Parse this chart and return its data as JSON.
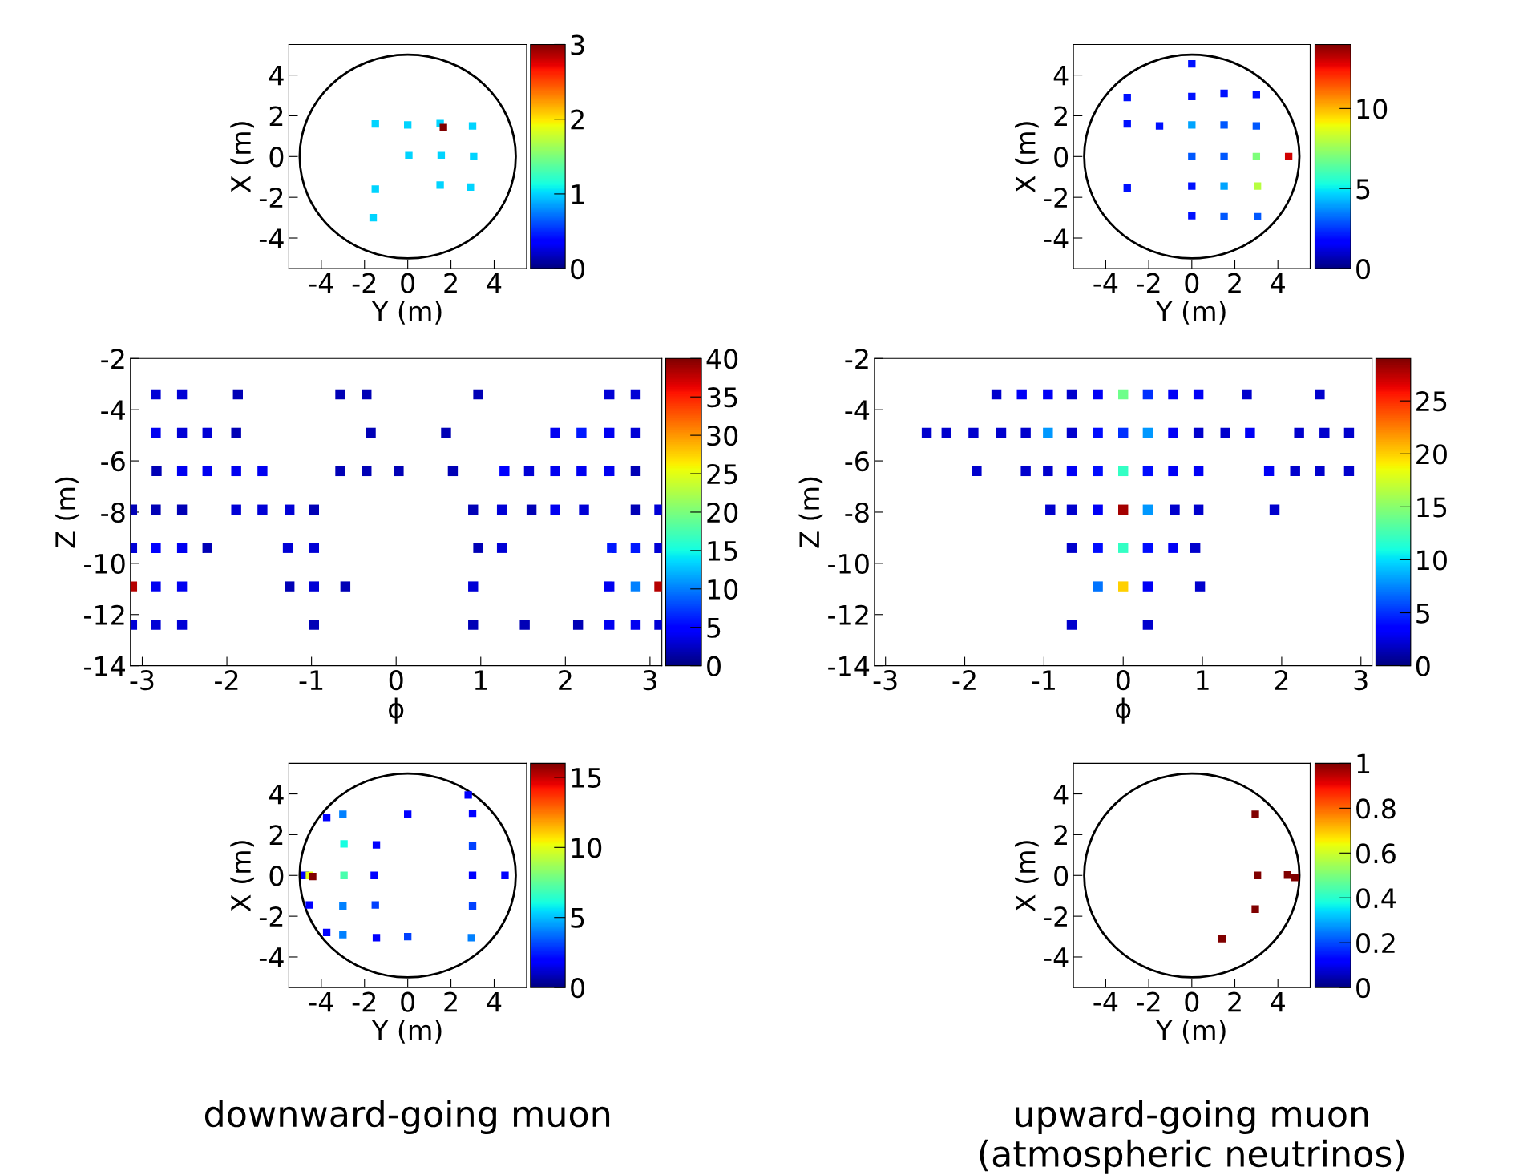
{
  "chart_data": [
    {
      "type": "scatter",
      "xlabel": "Y (m)",
      "ylabel": "X (m)",
      "marker": "square",
      "xlim": [
        -5.5,
        5.5
      ],
      "ylim": [
        -5.5,
        5.5
      ],
      "xticks": [
        -4,
        -2,
        0,
        2,
        4
      ],
      "yticks": [
        -4,
        -2,
        0,
        2,
        4
      ],
      "clim": [
        0,
        3
      ],
      "cticks": [
        0,
        1,
        2,
        3
      ],
      "x": [
        -1.5,
        0,
        1.5,
        1.65,
        3.0,
        0.05,
        1.55,
        3.05,
        -1.5,
        1.5,
        2.9,
        -1.6
      ],
      "values": [
        1.6,
        1.55,
        1.62,
        1.42,
        1.5,
        0.05,
        0.05,
        0,
        -1.6,
        -1.4,
        -1.5,
        -3.0
      ],
      "cvalues": [
        1,
        1,
        1,
        3,
        1,
        1,
        1,
        1,
        1,
        1,
        1,
        1
      ]
    },
    {
      "type": "scatter",
      "xlabel": "Y (m)",
      "ylabel": "X (m)",
      "marker": "square",
      "xlim": [
        -5.5,
        5.5
      ],
      "ylim": [
        -5.5,
        5.5
      ],
      "xticks": [
        -4,
        -2,
        0,
        2,
        4
      ],
      "yticks": [
        -4,
        -2,
        0,
        2,
        4
      ],
      "clim": [
        0,
        14
      ],
      "cticks": [
        0,
        5,
        10
      ],
      "x": [
        0,
        -3.0,
        0,
        1.5,
        3.0,
        -3.0,
        -1.5,
        0,
        1.5,
        3.0,
        0,
        1.5,
        3.0,
        4.5,
        -3.0,
        0,
        1.5,
        3.05,
        0,
        1.5,
        3.05
      ],
      "values": [
        4.55,
        2.9,
        2.95,
        3.1,
        3.05,
        1.6,
        1.5,
        1.55,
        1.55,
        1.5,
        0,
        0,
        0,
        0,
        -1.55,
        -1.45,
        -1.45,
        -1.45,
        -2.9,
        -2.95,
        -2.95
      ],
      "cvalues": [
        2,
        2,
        2,
        2,
        2,
        2,
        2,
        4,
        3,
        3,
        3,
        3,
        7,
        13,
        2,
        2,
        4,
        8,
        2,
        3,
        3
      ]
    },
    {
      "type": "scatter",
      "xlabel": "ϕ",
      "ylabel": "Z (m)",
      "marker": "square",
      "xlim": [
        -3.14,
        3.14
      ],
      "ylim": [
        -14,
        -2
      ],
      "xticks": [
        -3,
        -2,
        -1,
        0,
        1,
        2,
        3
      ],
      "yticks": [
        -14,
        -12,
        -10,
        -8,
        -6,
        -4,
        -2
      ],
      "clim": [
        0,
        40
      ],
      "cticks": [
        0,
        5,
        10,
        15,
        20,
        25,
        30,
        35,
        40
      ],
      "x": [
        -2.84,
        -2.53,
        -1.87,
        -0.66,
        -0.35,
        0.97,
        2.52,
        2.83,
        -2.84,
        -2.53,
        -2.23,
        -1.89,
        -0.3,
        0.59,
        1.88,
        2.19,
        2.52,
        2.83,
        -2.83,
        -2.53,
        -2.23,
        -1.89,
        -1.58,
        -0.66,
        -0.35,
        0.03,
        0.67,
        1.28,
        1.57,
        1.88,
        2.19,
        2.52,
        2.83,
        -3.12,
        -2.84,
        -2.53,
        -1.89,
        -1.58,
        -1.26,
        -0.97,
        0.91,
        1.25,
        1.6,
        1.88,
        2.22,
        2.83,
        3.11,
        -3.12,
        -2.84,
        -2.53,
        -2.23,
        -1.28,
        -0.97,
        0.97,
        1.25,
        2.55,
        2.83,
        3.11,
        -3.12,
        -2.84,
        -2.53,
        -1.26,
        -0.97,
        -0.6,
        0.91,
        2.52,
        2.83,
        3.11,
        -3.12,
        -2.84,
        -2.53,
        -0.97,
        0.91,
        1.52,
        2.15,
        2.52,
        2.83,
        3.11
      ],
      "values": [
        -3.4,
        -3.4,
        -3.4,
        -3.4,
        -3.4,
        -3.4,
        -3.4,
        -3.4,
        -4.9,
        -4.9,
        -4.9,
        -4.9,
        -4.9,
        -4.9,
        -4.9,
        -4.9,
        -4.9,
        -4.9,
        -6.4,
        -6.4,
        -6.4,
        -6.4,
        -6.4,
        -6.4,
        -6.4,
        -6.4,
        -6.4,
        -6.4,
        -6.4,
        -6.4,
        -6.4,
        -6.4,
        -6.4,
        -7.9,
        -7.9,
        -7.9,
        -7.9,
        -7.9,
        -7.9,
        -7.9,
        -7.9,
        -7.9,
        -7.9,
        -7.9,
        -7.9,
        -7.9,
        -7.9,
        -9.4,
        -9.4,
        -9.4,
        -9.4,
        -9.4,
        -9.4,
        -9.4,
        -9.4,
        -9.4,
        -9.4,
        -9.4,
        -10.9,
        -10.9,
        -10.9,
        -10.9,
        -10.9,
        -10.9,
        -10.9,
        -10.9,
        -10.9,
        -10.9,
        -12.4,
        -12.4,
        -12.4,
        -12.4,
        -12.4,
        -12.4,
        -12.4,
        -12.4,
        -12.4,
        -12.4
      ],
      "cvalues": [
        3,
        3,
        2,
        2,
        2,
        2,
        3,
        3,
        4,
        3,
        3,
        2,
        2,
        2,
        4,
        6,
        4,
        3,
        2,
        4,
        4,
        4,
        4,
        2,
        2,
        2,
        2,
        5,
        3,
        4,
        4,
        4,
        2,
        2,
        2,
        2,
        3,
        3,
        3,
        2,
        2,
        3,
        2,
        4,
        3,
        2,
        3,
        3,
        5,
        4,
        2,
        3,
        3,
        2,
        3,
        6,
        6,
        3,
        38,
        4,
        4,
        2,
        3,
        2,
        3,
        4,
        10,
        38,
        3,
        3,
        3,
        2,
        2,
        2,
        2,
        4,
        4,
        3
      ]
    },
    {
      "type": "scatter",
      "xlabel": "ϕ",
      "ylabel": "Z (m)",
      "marker": "square",
      "xlim": [
        -3.14,
        3.14
      ],
      "ylim": [
        -14,
        -2
      ],
      "xticks": [
        -3,
        -2,
        -1,
        0,
        1,
        2,
        3
      ],
      "yticks": [
        -14,
        -12,
        -10,
        -8,
        -6,
        -4,
        -2
      ],
      "clim": [
        0,
        29
      ],
      "cticks": [
        0,
        5,
        10,
        15,
        20,
        25
      ],
      "x": [
        -1.6,
        -1.28,
        -0.95,
        -0.65,
        -0.32,
        0,
        0.31,
        0.63,
        0.95,
        1.56,
        2.48,
        -2.48,
        -2.23,
        -1.89,
        -1.54,
        -1.23,
        -0.95,
        -0.65,
        -0.32,
        0,
        0.31,
        0.63,
        0.95,
        1.29,
        1.6,
        2.22,
        2.54,
        2.85,
        -1.85,
        -1.23,
        -0.95,
        -0.65,
        -0.32,
        0,
        0.31,
        0.63,
        0.95,
        1.84,
        2.17,
        2.48,
        2.85,
        -0.92,
        -0.65,
        -0.32,
        0,
        0.31,
        0.65,
        0.95,
        1.91,
        -0.65,
        -0.32,
        0,
        0.31,
        0.63,
        0.91,
        -0.32,
        0,
        0.31,
        0.97,
        -0.65,
        0.31
      ],
      "values": [
        -3.4,
        -3.4,
        -3.4,
        -3.4,
        -3.4,
        -3.4,
        -3.4,
        -3.4,
        -3.4,
        -3.4,
        -3.4,
        -4.9,
        -4.9,
        -4.9,
        -4.9,
        -4.9,
        -4.9,
        -4.9,
        -4.9,
        -4.9,
        -4.9,
        -4.9,
        -4.9,
        -4.9,
        -4.9,
        -4.9,
        -4.9,
        -4.9,
        -6.4,
        -6.4,
        -6.4,
        -6.4,
        -6.4,
        -6.4,
        -6.4,
        -6.4,
        -6.4,
        -6.4,
        -6.4,
        -6.4,
        -6.4,
        -7.9,
        -7.9,
        -7.9,
        -7.9,
        -7.9,
        -7.9,
        -7.9,
        -7.9,
        -9.4,
        -9.4,
        -9.4,
        -9.4,
        -9.4,
        -9.4,
        -10.9,
        -10.9,
        -10.9,
        -10.9,
        -12.4,
        -12.4
      ],
      "cvalues": [
        2,
        3,
        3,
        2,
        3,
        14,
        5,
        3,
        3,
        2,
        2,
        2,
        2,
        2,
        2,
        2,
        8,
        2,
        4,
        5,
        8,
        3,
        2,
        2,
        3,
        2,
        2,
        2,
        2,
        2,
        2,
        3,
        4,
        12,
        4,
        3,
        3,
        3,
        2,
        2,
        2,
        2,
        2,
        3,
        28,
        8,
        2,
        2,
        2,
        2,
        4,
        12,
        4,
        3,
        2,
        7,
        20,
        3,
        2,
        2,
        2
      ]
    },
    {
      "type": "scatter",
      "xlabel": "Y (m)",
      "ylabel": "X (m)",
      "marker": "square",
      "xlim": [
        -5.5,
        5.5
      ],
      "ylim": [
        -5.5,
        5.5
      ],
      "xticks": [
        -4,
        -2,
        0,
        2,
        4
      ],
      "yticks": [
        -4,
        -2,
        0,
        2,
        4
      ],
      "clim": [
        0,
        16
      ],
      "cticks": [
        0,
        5,
        10,
        15
      ],
      "annotations": [
        "downward-going muon"
      ],
      "x": [
        2.8,
        -3.75,
        -3.0,
        0,
        3.0,
        -2.95,
        -1.45,
        3.0,
        -4.75,
        -4.55,
        -4.4,
        -2.95,
        -1.55,
        3.0,
        4.5,
        -4.55,
        -3.0,
        -1.5,
        3.0,
        -3.75,
        -3.0,
        -1.45,
        0,
        2.95
      ],
      "values": [
        3.95,
        2.85,
        3.0,
        3.0,
        3.05,
        1.55,
        1.5,
        1.45,
        0,
        0,
        -0.05,
        0,
        0,
        0,
        0,
        -1.45,
        -1.5,
        -1.45,
        -1.5,
        -2.8,
        -2.9,
        -3.05,
        -3.0,
        -3.05
      ],
      "cvalues": [
        2,
        2,
        4,
        2,
        2,
        6,
        2,
        3,
        2,
        10,
        16,
        7,
        2,
        2,
        2,
        2,
        4,
        3,
        3,
        2,
        4,
        2,
        3,
        4
      ]
    },
    {
      "type": "scatter",
      "xlabel": "Y (m)",
      "ylabel": "X (m)",
      "marker": "square",
      "xlim": [
        -5.5,
        5.5
      ],
      "ylim": [
        -5.5,
        5.5
      ],
      "xticks": [
        -4,
        -2,
        0,
        2,
        4
      ],
      "yticks": [
        -4,
        -2,
        0,
        2,
        4
      ],
      "clim": [
        0,
        1
      ],
      "cticks": [
        0,
        0.2,
        0.4,
        0.6,
        0.8,
        1
      ],
      "annotations": [
        "upward-going muon\n(atmospheric neutrinos)"
      ],
      "x": [
        2.95,
        3.05,
        4.45,
        4.8,
        2.95,
        1.4
      ],
      "values": [
        3.0,
        0,
        0.02,
        -0.1,
        -1.65,
        -3.1
      ],
      "cvalues": [
        1,
        1,
        1,
        1,
        1,
        1
      ]
    }
  ]
}
